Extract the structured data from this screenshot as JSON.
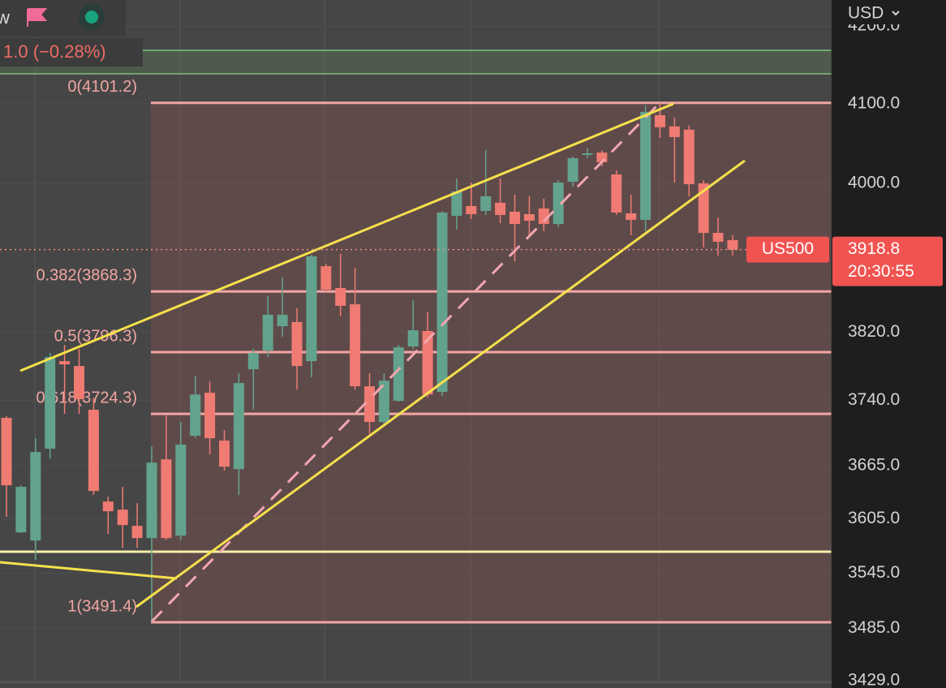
{
  "header": {
    "symbol": "w",
    "change": "1.0 (−0.28%)",
    "currency": "USD"
  },
  "price_label": {
    "symbol": "US500",
    "countdown": "20:30:55"
  },
  "chart_data": {
    "type": "candlestick",
    "log_scale": true,
    "grid": true,
    "up_color": "#63a38e",
    "down_color": "#ef7b72",
    "open": [
      3719.7,
      3590.1,
      3581.0,
      3684.3,
      3785.7,
      3780.0,
      3729.1,
      3624.5,
      3615.4,
      3597.3,
      3583.7,
      3672.2,
      3586.4,
      3699.2,
      3748.8,
      3693.6,
      3661.1,
      3776.2,
      3798.1,
      3826.9,
      3831.8,
      3785.7,
      3898.8,
      3872.5,
      3853.0,
      3756.3,
      3715.0,
      3739.4,
      3802.9,
      3821.2,
      3749.7,
      3960.1,
      3972.1,
      3966.1,
      3976.1,
      3965.1,
      3962.1,
      3969.1,
      3950.1,
      4002.1,
      4035.5,
      4038.5,
      4011.2,
      3963.1,
      3955.1,
      4085.6,
      4071.3,
      4067.2,
      4000.1,
      3939.2,
      3930.4
    ],
    "high": [
      3721.6,
      3642.8,
      3696.4,
      3795.3,
      3804.8,
      3800.0,
      3743.1,
      3630.0,
      3641.0,
      3622.7,
      3687.1,
      3722.5,
      3715.0,
      3768.6,
      3762.0,
      3705.6,
      3771.5,
      3800.0,
      3862.8,
      3885.2,
      3848.2,
      3912.6,
      3901.8,
      3913.6,
      3896.9,
      3771.5,
      3771.5,
      3804.8,
      3857.9,
      3843.4,
      3966.1,
      4006.2,
      4001.1,
      4041.6,
      4006.2,
      3986.1,
      3984.1,
      3981.1,
      4004.1,
      4033.5,
      4043.6,
      4041.6,
      4016.3,
      3986.1,
      4097.9,
      4101.2,
      4082.5,
      4072.3,
      4004.1,
      3958.1,
      3936.3
    ],
    "low": [
      3607.3,
      3589.2,
      3559.5,
      3673.2,
      3724.4,
      3724.4,
      3631.9,
      3588.3,
      3572.9,
      3572.9,
      3491.4,
      3581.9,
      3581.9,
      3696.4,
      3677.8,
      3659.3,
      3631.9,
      3729.1,
      3790.5,
      3814.4,
      3752.5,
      3766.7,
      3867.6,
      3838.6,
      3752.5,
      3701.0,
      3710.3,
      3738.5,
      3800.0,
      3743.1,
      3745.0,
      3943.2,
      3956.1,
      3961.1,
      3951.1,
      3904.7,
      3936.3,
      3941.2,
      3946.1,
      3996.1,
      4031.5,
      4021.3,
      3961.1,
      3936.3,
      3941.2,
      4056.9,
      4001.1,
      3984.1,
      3921.5,
      3911.6,
      3911.6
    ],
    "close": [
      3642.8,
      3641.0,
      3680.6,
      3790.5,
      3781.9,
      3741.3,
      3636.4,
      3613.6,
      3598.2,
      3583.7,
      3668.5,
      3583.7,
      3689.0,
      3746.8,
      3696.4,
      3663.9,
      3760.1,
      3795.3,
      3840.5,
      3840.5,
      3780.0,
      3910.6,
      3870.5,
      3851.1,
      3756.3,
      3715.0,
      3762.9,
      3801.9,
      3822.1,
      3746.8,
      3964.1,
      3990.1,
      3962.1,
      3984.1,
      3961.1,
      3950.1,
      3954.1,
      3950.1,
      4001.1,
      4031.5,
      4037.5,
      4026.4,
      3964.1,
      3955.1,
      4089.7,
      4070.3,
      4057.9,
      3999.1,
      3939.2,
      3928.4,
      3918.8
    ],
    "ylim": [
      3421,
      4234
    ],
    "yticks": [
      {
        "value": 4200,
        "label": "4200.0"
      },
      {
        "value": 4100,
        "label": "4100.0"
      },
      {
        "value": 4000,
        "label": "4000.0"
      },
      {
        "value": 3820,
        "label": "3820.0"
      },
      {
        "value": 3740,
        "label": "3740.0"
      },
      {
        "value": 3665,
        "label": "3665.0"
      },
      {
        "value": 3605,
        "label": "3605.0"
      },
      {
        "value": 3545,
        "label": "3545.0"
      },
      {
        "value": 3485,
        "label": "3485.0"
      },
      {
        "value": 3429,
        "label": "3429.0"
      }
    ],
    "fib_levels": [
      {
        "label": "0(4101.2)",
        "value": 4101.2
      },
      {
        "label": "0.382(3868.3)",
        "value": 3868.3
      },
      {
        "label": "0.5(3796.3)",
        "value": 3796.3
      },
      {
        "label": "0.618(3724.3)",
        "value": 3724.3
      },
      {
        "label": "1(3491.4)",
        "value": 3491.4
      }
    ]
  }
}
